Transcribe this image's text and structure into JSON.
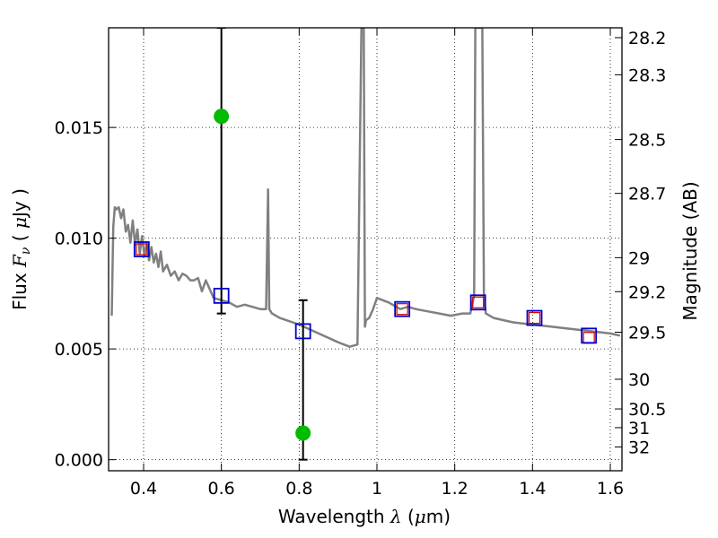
{
  "chart_data": {
    "type": "scatter",
    "xlabel_text": "Wavelength",
    "xlabel_symbol": "λ",
    "xlabel_unit_open": "(",
    "xlabel_unit_mu": "μ",
    "xlabel_unit_rest": "m)",
    "ylabel_text": "Flux",
    "ylabel_symbol": "F",
    "ylabel_sub": "ν",
    "ylabel_unit_open": "(",
    "ylabel_unit_mu": "μ",
    "ylabel_unit_rest": "Jy )",
    "y2label": "Magnitude (AB)",
    "xlim": [
      0.31,
      1.63
    ],
    "ylim": [
      -0.0005,
      0.0195
    ],
    "xticks": [
      0.4,
      0.6,
      0.8,
      1.0,
      1.2,
      1.4,
      1.6
    ],
    "xtick_labels": [
      "0.4",
      "0.6",
      "0.8",
      "1",
      "1.2",
      "1.4",
      "1.6"
    ],
    "yticks": [
      0.0,
      0.005,
      0.01,
      0.015
    ],
    "ytick_labels": [
      "0.000",
      "0.005",
      "0.010",
      "0.015"
    ],
    "mag_ticks": [
      "28.2",
      "28.3",
      "28.5",
      "28.7",
      "29",
      "29.2",
      "29.5",
      "30",
      "30.5",
      "31",
      "32"
    ],
    "grid": true,
    "colors": {
      "sed": "#808080",
      "model_box": "#0000cc",
      "obs_box": "#cc0000",
      "detection": "#00bb00",
      "errorbar": "#000000"
    },
    "sed_model": {
      "x": [
        0.318,
        0.322,
        0.326,
        0.33,
        0.336,
        0.342,
        0.348,
        0.354,
        0.36,
        0.366,
        0.372,
        0.378,
        0.384,
        0.39,
        0.396,
        0.402,
        0.408,
        0.414,
        0.42,
        0.426,
        0.432,
        0.438,
        0.444,
        0.45,
        0.46,
        0.47,
        0.48,
        0.49,
        0.5,
        0.51,
        0.52,
        0.53,
        0.54,
        0.55,
        0.56,
        0.57,
        0.58,
        0.6,
        0.62,
        0.64,
        0.66,
        0.68,
        0.7,
        0.715,
        0.72,
        0.723,
        0.73,
        0.75,
        0.8,
        0.85,
        0.9,
        0.93,
        0.95,
        0.96,
        0.963,
        0.966,
        0.969,
        0.972,
        0.98,
        0.99,
        1.0,
        1.03,
        1.06,
        1.08,
        1.1,
        1.13,
        1.16,
        1.19,
        1.22,
        1.24,
        1.25,
        1.253,
        1.257,
        1.262,
        1.267,
        1.271,
        1.275,
        1.28,
        1.3,
        1.35,
        1.4,
        1.45,
        1.5,
        1.55,
        1.6,
        1.625
      ],
      "y": [
        0.0065,
        0.0105,
        0.0114,
        0.0113,
        0.0114,
        0.0109,
        0.0113,
        0.0103,
        0.0106,
        0.0098,
        0.0108,
        0.0097,
        0.0104,
        0.0093,
        0.0101,
        0.0092,
        0.0098,
        0.009,
        0.0096,
        0.0089,
        0.0093,
        0.0087,
        0.0094,
        0.0085,
        0.0088,
        0.0083,
        0.0085,
        0.0081,
        0.0084,
        0.0083,
        0.0081,
        0.0081,
        0.0082,
        0.0076,
        0.0081,
        0.0077,
        0.0073,
        0.0072,
        0.0071,
        0.0069,
        0.007,
        0.0069,
        0.0068,
        0.0068,
        0.0122,
        0.0068,
        0.0066,
        0.0064,
        0.0061,
        0.0057,
        0.0053,
        0.0051,
        0.0052,
        0.0195,
        0.0195,
        0.0195,
        0.006,
        0.0063,
        0.0064,
        0.0068,
        0.0073,
        0.0071,
        0.0068,
        0.0069,
        0.0068,
        0.0067,
        0.0066,
        0.0065,
        0.0066,
        0.0066,
        0.0074,
        0.0195,
        0.0195,
        0.0195,
        0.0195,
        0.0195,
        0.0074,
        0.0066,
        0.0064,
        0.0062,
        0.0061,
        0.006,
        0.0059,
        0.0058,
        0.0057,
        0.0056
      ]
    },
    "model_photometry": {
      "x": [
        0.395,
        0.6,
        0.81,
        1.065,
        1.26,
        1.405,
        1.545
      ],
      "y": [
        0.0095,
        0.0074,
        0.0058,
        0.0068,
        0.0071,
        0.0064,
        0.0056
      ]
    },
    "observed_photometry": {
      "x": [
        0.395,
        1.065,
        1.26,
        1.405,
        1.545
      ],
      "y": [
        0.0095,
        0.0068,
        0.0071,
        0.0064,
        0.0055
      ]
    },
    "detections": {
      "x": [
        0.6,
        0.81
      ],
      "y": [
        0.0155,
        0.0012
      ],
      "err_low": [
        0.0066,
        0.0
      ],
      "err_high": [
        0.0195,
        0.0072
      ]
    }
  }
}
